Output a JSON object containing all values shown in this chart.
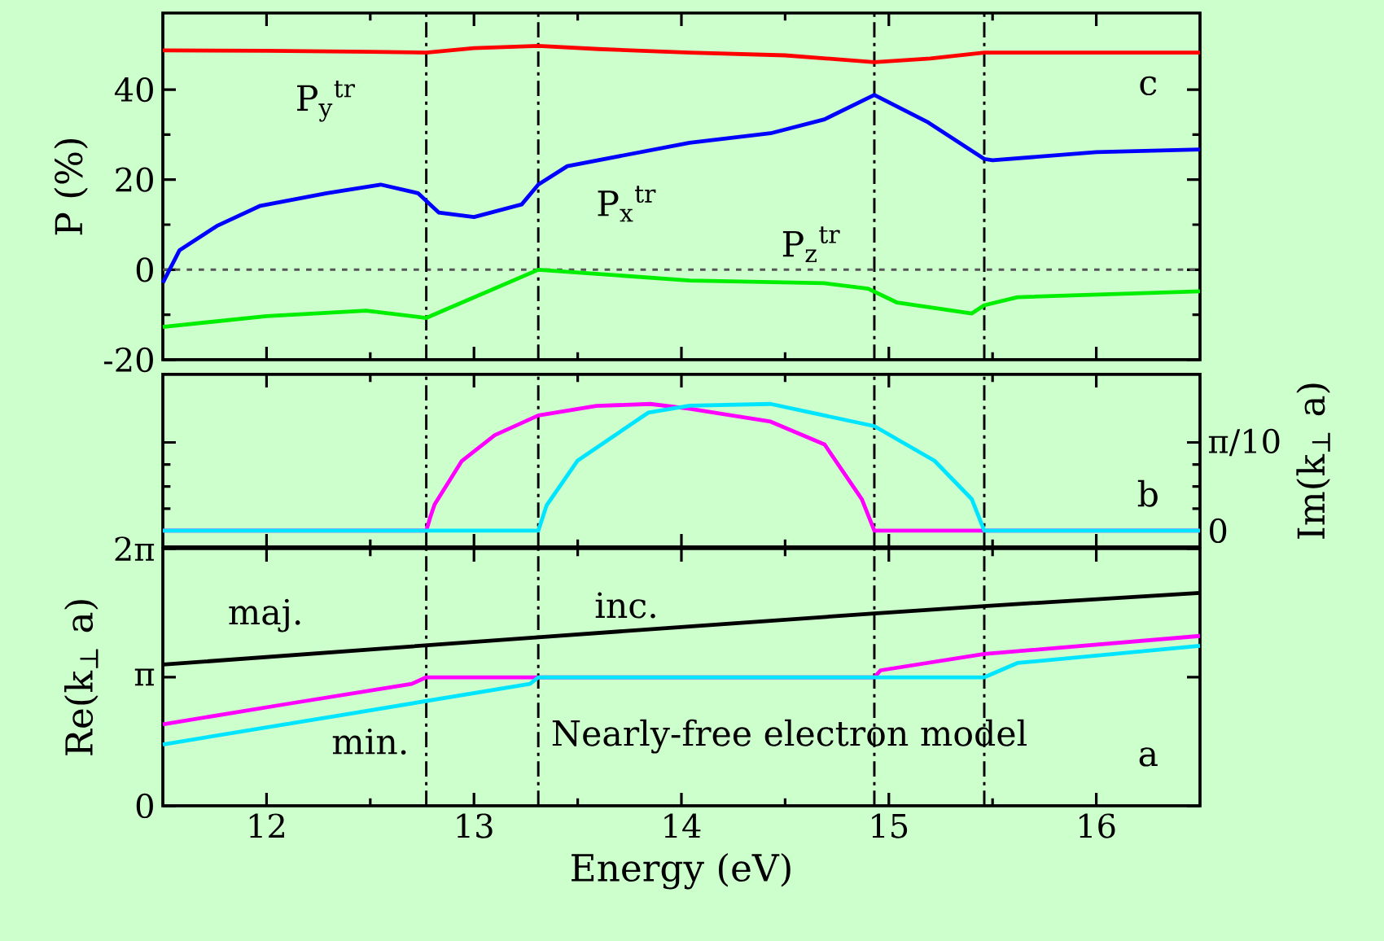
{
  "chart_data": [
    {
      "type": "line",
      "ylabel": "P (%)",
      "xlim": [
        11.5,
        16.5
      ],
      "xticks": [
        12,
        13,
        14,
        15,
        16
      ],
      "ylim": [
        -20,
        57
      ],
      "yticks": [
        -20,
        0,
        20,
        40
      ],
      "tick_labels": "y",
      "series": [
        {
          "color": "#ff0000",
          "x": [
            11.5,
            12.0,
            12.5,
            12.77,
            13.0,
            13.31,
            13.6,
            14.04,
            14.5,
            14.93,
            15.2,
            15.46,
            16.0,
            16.5
          ],
          "values": [
            48.7,
            48.6,
            48.4,
            48.2,
            49.2,
            49.7,
            49.0,
            48.2,
            47.6,
            46.1,
            46.9,
            48.2,
            48.2,
            48.2
          ]
        },
        {
          "color": "#0000ff",
          "x": [
            11.5,
            11.58,
            11.76,
            11.97,
            12.29,
            12.55,
            12.73,
            12.83,
            13.0,
            13.23,
            13.31,
            13.45,
            14.04,
            14.43,
            14.69,
            14.93,
            15.19,
            15.46,
            15.5,
            16.0,
            16.5
          ],
          "values": [
            -2.9,
            4.3,
            9.7,
            14.2,
            17.0,
            18.9,
            17.0,
            12.7,
            11.7,
            14.5,
            18.9,
            23.0,
            28.2,
            30.3,
            33.4,
            38.8,
            32.7,
            24.6,
            24.3,
            26.1,
            26.7
          ]
        },
        {
          "color": "#00ee00",
          "x": [
            11.5,
            12.0,
            12.48,
            12.77,
            13.31,
            14.04,
            14.69,
            14.9,
            15.04,
            15.4,
            15.46,
            15.62,
            16.5
          ],
          "values": [
            -12.7,
            -10.3,
            -9.1,
            -10.7,
            0,
            -2.4,
            -3.0,
            -4.2,
            -7.3,
            -9.7,
            -7.9,
            -6.1,
            -4.8
          ]
        }
      ],
      "ref_lines": [
        {
          "axis": "y",
          "value": 0,
          "color": "#555555",
          "line_style": "dotted"
        },
        {
          "axis": "x",
          "value": 12.77,
          "color": "#000000",
          "line_style": "dashdot"
        },
        {
          "axis": "x",
          "value": 13.31,
          "color": "#000000",
          "line_style": "dashdot"
        },
        {
          "axis": "x",
          "value": 14.93,
          "color": "#000000",
          "line_style": "dashdot"
        },
        {
          "axis": "x",
          "value": 15.46,
          "color": "#000000",
          "line_style": "dashdot"
        }
      ],
      "annotations": [
        "P$_{y}$$^{tr}$",
        "P$_{x}$$^{tr}$",
        "P$_{z}$$^{tr}$",
        "c"
      ]
    },
    {
      "type": "line",
      "y2label": "Im(k$_{⊥}$ a)",
      "xlim": [
        11.5,
        16.5
      ],
      "xticks": [
        12,
        13,
        14,
        15,
        16
      ],
      "y2lim": [
        -0.058,
        0.556
      ],
      "y2ticks": [
        0,
        {
          "value": 0.31416,
          "label": "π/10"
        }
      ],
      "tick_labels": "y",
      "series": [
        {
          "axis": "y2",
          "color": "#ff00ff",
          "x": [
            11.5,
            12.77,
            12.79,
            12.81,
            12.94,
            13.1,
            13.31,
            13.59,
            13.85,
            14.04,
            14.43,
            14.69,
            14.87,
            14.93,
            16.5
          ],
          "values": [
            0,
            0,
            0.05,
            0.093,
            0.247,
            0.34,
            0.41,
            0.444,
            0.451,
            0.434,
            0.388,
            0.307,
            0.112,
            0,
            0
          ]
        },
        {
          "axis": "y2",
          "color": "#00e5ff",
          "x": [
            11.5,
            13.31,
            13.35,
            13.5,
            13.84,
            14.04,
            14.43,
            14.93,
            15.22,
            15.4,
            15.46,
            16.5
          ],
          "values": [
            0,
            0,
            0.09,
            0.25,
            0.42,
            0.445,
            0.451,
            0.372,
            0.249,
            0.112,
            0,
            0
          ]
        }
      ],
      "ref_lines": [
        {
          "axis": "x",
          "value": 12.77,
          "color": "#000000",
          "line_style": "dashdot"
        },
        {
          "axis": "x",
          "value": 13.31,
          "color": "#000000",
          "line_style": "dashdot"
        },
        {
          "axis": "x",
          "value": 14.93,
          "color": "#000000",
          "line_style": "dashdot"
        },
        {
          "axis": "x",
          "value": 15.46,
          "color": "#000000",
          "line_style": "dashdot"
        }
      ],
      "annotations": [
        "b"
      ]
    },
    {
      "type": "line",
      "xlabel": "Energy (eV)",
      "ylabel": "Re(k$_{⊥}$ a)",
      "xlim": [
        11.5,
        16.5
      ],
      "xticks": [
        12,
        13,
        14,
        15,
        16
      ],
      "ylim": [
        0,
        6.28319
      ],
      "yticks": [
        0,
        {
          "value": 3.14159,
          "label": "π"
        },
        {
          "value": 6.28319,
          "label": "2π"
        }
      ],
      "series": [
        {
          "color": "#000000",
          "x": [
            11.5,
            13.31,
            14.93,
            15.46,
            16.5
          ],
          "values": [
            3.45,
            4.12,
            4.7,
            4.88,
            5.2
          ]
        },
        {
          "color": "#ff00ff",
          "x": [
            11.5,
            12.1,
            12.7,
            12.77,
            14.93,
            14.96,
            15.46,
            16.5
          ],
          "values": [
            1.99,
            2.49,
            2.98,
            3.14,
            3.14,
            3.31,
            3.71,
            4.15
          ]
        },
        {
          "color": "#00e5ff",
          "x": [
            11.5,
            12.4,
            13.27,
            13.31,
            15.46,
            15.62,
            16.5
          ],
          "values": [
            1.5,
            2.25,
            2.98,
            3.14,
            3.14,
            3.49,
            3.91
          ]
        }
      ],
      "ref_lines": [
        {
          "axis": "x",
          "value": 12.77,
          "color": "#000000",
          "line_style": "dashdot"
        },
        {
          "axis": "x",
          "value": 13.31,
          "color": "#000000",
          "line_style": "dashdot"
        },
        {
          "axis": "x",
          "value": 14.93,
          "color": "#000000",
          "line_style": "dashdot"
        },
        {
          "axis": "x",
          "value": 15.46,
          "color": "#000000",
          "line_style": "dashdot"
        }
      ],
      "annotations": [
        "maj.",
        "inc.",
        "min.",
        "Nearly-free electron model",
        "a"
      ]
    }
  ]
}
